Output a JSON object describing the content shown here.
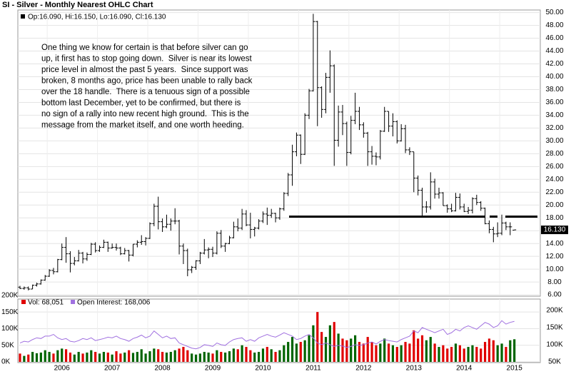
{
  "chart_data": [
    {
      "type": "ohlc",
      "title": "SI - Silver - Monthly Nearest OHLC Chart",
      "ohlc_label": "Op:16.090, Hi:16.150, Lo:16.090, Cl:16.130",
      "annotation": [
        "One thing we know for certain is that before silver can go",
        "up, it first has to stop going down.  Silver is near its lowest",
        "price level in almost the past 5 years.  Since support was",
        "broken, 8 months ago, price has been unable to rally back",
        "over the 18 handle.  There is a tenuous sign of a possible",
        "bottom last December, yet to be confirmed, but there is",
        "no sign of a rally into new recent high ground.  This is the",
        "message from the market itself, and one worth heeding."
      ],
      "color": "#000000",
      "open": [
        7.2,
        7.0,
        7.1,
        6.9,
        7.5,
        7.7,
        8.3,
        8.9,
        9.8,
        9.6,
        11.5,
        13.4,
        12.4,
        10.9,
        11.3,
        12.5,
        11.6,
        12.3,
        13.9,
        12.9,
        13.4,
        14.2,
        13.3,
        13.4,
        13.3,
        12.4,
        12.9,
        12.2,
        13.9,
        14.2,
        14.3,
        14.8,
        17.1,
        19.8,
        17.4,
        16.6,
        17.0,
        17.5,
        17.5,
        13.6,
        12.9,
        9.9,
        10.3,
        11.3,
        12.5,
        13.0,
        13.1,
        12.5,
        15.6,
        13.6,
        14.0,
        14.9,
        16.6,
        16.4,
        18.6,
        16.9,
        16.2,
        16.4,
        17.5,
        18.6,
        18.4,
        18.7,
        18.0,
        19.4,
        21.8,
        24.7,
        28.3,
        30.9,
        27.9,
        34.0,
        37.8,
        48.6,
        38.3,
        34.9,
        39.9,
        41.7,
        30.1,
        34.5,
        32.7,
        28.2,
        33.2,
        34.6,
        32.5,
        31.2,
        28.3,
        27.6,
        27.5,
        31.5,
        34.6,
        32.3,
        33.0,
        30.0,
        31.9,
        28.6,
        28.3,
        24.2,
        22.3,
        19.7,
        19.7,
        23.6,
        21.7,
        21.9,
        19.9,
        19.4,
        19.1,
        21.2,
        19.7,
        19.0,
        19.2,
        21.0,
        20.4,
        19.5,
        17.1,
        16.2,
        15.5,
        15.6,
        17.2,
        16.6,
        16.09
      ],
      "high": [
        7.4,
        7.3,
        7.3,
        7.6,
        7.9,
        8.4,
        9.1,
        10.0,
        10.2,
        11.6,
        14.0,
        15.0,
        12.8,
        11.9,
        13.0,
        12.7,
        12.6,
        14.1,
        14.2,
        13.7,
        14.6,
        14.3,
        14.0,
        14.0,
        13.5,
        13.3,
        13.0,
        13.9,
        14.5,
        15.3,
        15.0,
        17.3,
        20.2,
        21.3,
        17.9,
        18.5,
        17.9,
        19.5,
        17.7,
        14.0,
        13.2,
        10.5,
        11.4,
        12.7,
        14.7,
        13.4,
        13.5,
        15.9,
        16.1,
        14.1,
        15.2,
        17.4,
        17.9,
        19.4,
        19.2,
        18.8,
        16.6,
        17.8,
        19.0,
        19.6,
        19.4,
        18.8,
        19.6,
        22.0,
        25.0,
        29.4,
        31.3,
        31.0,
        34.3,
        38.1,
        49.8,
        48.7,
        38.5,
        40.6,
        44.1,
        41.9,
        35.5,
        35.6,
        33.0,
        33.9,
        37.5,
        35.3,
        32.9,
        31.4,
        29.2,
        28.2,
        31.7,
        35.3,
        34.6,
        34.3,
        33.2,
        32.6,
        32.5,
        29.0,
        28.3,
        24.6,
        22.7,
        20.6,
        25.1,
        24.1,
        22.7,
        22.0,
        20.1,
        20.2,
        21.9,
        21.8,
        20.2,
        19.7,
        21.2,
        21.6,
        20.6,
        19.6,
        17.6,
        16.6,
        17.3,
        18.5,
        17.4,
        17.3,
        16.15
      ],
      "low": [
        6.9,
        6.8,
        6.7,
        6.9,
        7.3,
        7.6,
        8.2,
        8.8,
        9.2,
        9.5,
        11.4,
        11.0,
        9.5,
        10.6,
        11.2,
        10.9,
        11.3,
        12.2,
        12.6,
        12.7,
        13.3,
        12.7,
        13.2,
        12.9,
        12.2,
        12.3,
        11.2,
        12.0,
        13.4,
        13.8,
        13.7,
        14.7,
        16.7,
        16.2,
        15.8,
        16.4,
        16.0,
        17.0,
        12.3,
        10.8,
        8.9,
        9.4,
        9.9,
        10.8,
        12.3,
        11.7,
        11.9,
        12.3,
        13.3,
        12.7,
        13.9,
        14.8,
        15.9,
        16.1,
        16.7,
        14.8,
        15.1,
        16.2,
        17.2,
        16.9,
        18.0,
        17.3,
        17.7,
        19.1,
        21.4,
        23.0,
        27.6,
        26.4,
        27.8,
        33.4,
        37.7,
        32.3,
        33.6,
        34.3,
        37.5,
        26.1,
        29.1,
        30.9,
        26.1,
        27.9,
        32.6,
        31.7,
        30.5,
        26.1,
        26.3,
        26.2,
        27.1,
        31.4,
        31.4,
        30.7,
        29.6,
        29.9,
        28.1,
        27.8,
        22.0,
        21.5,
        18.2,
        18.8,
        19.3,
        21.0,
        21.0,
        19.9,
        18.8,
        18.9,
        19.0,
        19.3,
        18.9,
        18.6,
        18.7,
        20.0,
        19.1,
        17.0,
        15.6,
        14.2,
        15.0,
        15.3,
        16.1,
        15.3,
        16.09
      ],
      "close": [
        7.0,
        7.1,
        6.9,
        7.5,
        7.7,
        8.3,
        8.9,
        9.8,
        9.6,
        11.5,
        13.4,
        12.4,
        10.9,
        11.3,
        12.5,
        11.6,
        12.3,
        13.9,
        12.9,
        13.4,
        14.2,
        13.3,
        13.4,
        13.3,
        12.4,
        12.9,
        12.2,
        13.9,
        14.2,
        14.3,
        14.8,
        17.1,
        19.8,
        17.4,
        16.6,
        17.0,
        17.5,
        17.5,
        13.6,
        12.9,
        9.9,
        10.3,
        11.3,
        12.5,
        13.0,
        13.1,
        12.5,
        15.6,
        13.6,
        14.0,
        14.9,
        16.6,
        16.4,
        18.6,
        16.9,
        16.2,
        16.4,
        17.5,
        18.6,
        18.4,
        18.7,
        18.0,
        19.4,
        21.8,
        24.7,
        28.3,
        30.9,
        27.9,
        34.0,
        37.8,
        48.6,
        38.3,
        34.9,
        39.9,
        41.7,
        30.1,
        34.5,
        32.7,
        28.2,
        33.2,
        34.6,
        32.5,
        31.2,
        28.3,
        27.6,
        27.5,
        31.5,
        34.6,
        32.3,
        33.0,
        30.0,
        31.9,
        28.6,
        28.3,
        24.2,
        22.3,
        19.7,
        19.7,
        23.6,
        21.7,
        21.9,
        19.9,
        19.4,
        19.1,
        21.2,
        19.7,
        19.0,
        19.2,
        21.0,
        20.4,
        19.5,
        17.1,
        16.2,
        15.5,
        15.6,
        17.2,
        16.6,
        16.6,
        16.13
      ],
      "last_close_label": "16.130",
      "support_level": 18.2,
      "ylim": [
        5.9,
        50.4
      ],
      "yticks": [
        {
          "value": 6,
          "label": "6.00"
        },
        {
          "value": 8,
          "label": "8.00"
        },
        {
          "value": 10,
          "label": "10.00"
        },
        {
          "value": 12,
          "label": "12.00"
        },
        {
          "value": 14,
          "label": "14.00"
        },
        {
          "value": 16,
          "label": "16.00"
        },
        {
          "value": 18,
          "label": "18.00"
        },
        {
          "value": 20,
          "label": "20.00"
        },
        {
          "value": 22,
          "label": "22.00"
        },
        {
          "value": 24,
          "label": "24.00"
        },
        {
          "value": 26,
          "label": "26.00"
        },
        {
          "value": 28,
          "label": "28.00"
        },
        {
          "value": 30,
          "label": "30.00"
        },
        {
          "value": 32,
          "label": "32.00"
        },
        {
          "value": 34,
          "label": "34.00"
        },
        {
          "value": 36,
          "label": "36.00"
        },
        {
          "value": 38,
          "label": "38.00"
        },
        {
          "value": 40,
          "label": "40.00"
        },
        {
          "value": 42,
          "label": "42.00"
        },
        {
          "value": 44,
          "label": "44.00"
        },
        {
          "value": 46,
          "label": "46.00"
        },
        {
          "value": 48,
          "label": "48.00"
        },
        {
          "value": 50,
          "label": "50.00"
        }
      ],
      "grid": true
    },
    {
      "type": "bar",
      "categories": [
        null,
        null,
        null,
        null,
        null,
        null,
        null,
        "2006",
        null,
        null,
        null,
        null,
        null,
        null,
        null,
        null,
        null,
        null,
        null,
        "2007",
        null,
        null,
        null,
        null,
        null,
        null,
        null,
        null,
        null,
        null,
        null,
        "2008",
        null,
        null,
        null,
        null,
        null,
        null,
        null,
        null,
        null,
        null,
        null,
        "2009",
        null,
        null,
        null,
        null,
        null,
        null,
        null,
        null,
        null,
        null,
        null,
        "2010",
        null,
        null,
        null,
        null,
        null,
        null,
        null,
        null,
        null,
        null,
        null,
        "2011",
        null,
        null,
        null,
        null,
        null,
        null,
        null,
        null,
        null,
        null,
        null,
        "2012",
        null,
        null,
        null,
        null,
        null,
        null,
        null,
        null,
        null,
        null,
        null,
        "2013",
        null,
        null,
        null,
        null,
        null,
        null,
        null,
        null,
        null,
        null,
        null,
        "2014",
        null,
        null,
        null,
        null,
        null,
        null,
        null,
        null,
        null,
        null,
        null,
        "2015",
        null,
        null,
        null
      ],
      "series": [
        {
          "name": "Vol: 68,051",
          "color": "#e00000",
          "up_color": "#006400",
          "values": [
            25000,
            18000,
            22000,
            30000,
            26000,
            28000,
            35000,
            30000,
            25000,
            35000,
            40000,
            38000,
            28000,
            22000,
            30000,
            25000,
            28000,
            35000,
            30000,
            25000,
            30000,
            28000,
            22000,
            32000,
            25000,
            28000,
            35000,
            27000,
            30000,
            38000,
            25000,
            32000,
            40000,
            38000,
            30000,
            28000,
            30000,
            35000,
            40000,
            45000,
            35000,
            25000,
            22000,
            25000,
            30000,
            28000,
            25000,
            35000,
            30000,
            28000,
            32000,
            40000,
            38000,
            50000,
            45000,
            35000,
            28000,
            30000,
            40000,
            45000,
            38000,
            30000,
            35000,
            50000,
            60000,
            75000,
            55000,
            60000,
            65000,
            80000,
            110000,
            150000,
            90000,
            75000,
            110000,
            120000,
            85000,
            70000,
            65000,
            70000,
            80000,
            60000,
            55000,
            75000,
            60000,
            50000,
            55000,
            70000,
            55000,
            50000,
            45000,
            50000,
            60000,
            55000,
            95000,
            70000,
            80000,
            65000,
            75000,
            55000,
            45000,
            50000,
            40000,
            45000,
            55000,
            50000,
            40000,
            45000,
            50000,
            45000,
            40000,
            60000,
            70000,
            65000,
            50000,
            55000,
            45000,
            65000,
            68051
          ]
        },
        {
          "name": "Open Interest: 168,006",
          "color": "#a070e0",
          "type": "line",
          "axis": "y2",
          "values": [
            105000,
            110000,
            108000,
            115000,
            120000,
            118000,
            125000,
            125000,
            130000,
            120000,
            115000,
            118000,
            110000,
            108000,
            112000,
            118000,
            115000,
            120000,
            112000,
            115000,
            118000,
            122000,
            120000,
            125000,
            118000,
            115000,
            110000,
            118000,
            122000,
            128000,
            120000,
            125000,
            140000,
            130000,
            120000,
            125000,
            118000,
            120000,
            105000,
            100000,
            95000,
            90000,
            88000,
            92000,
            100000,
            98000,
            95000,
            105000,
            100000,
            98000,
            108000,
            115000,
            118000,
            120000,
            110000,
            115000,
            110000,
            120000,
            125000,
            130000,
            125000,
            122000,
            128000,
            135000,
            130000,
            125000,
            115000,
            118000,
            125000,
            130000,
            120000,
            105000,
            100000,
            105000,
            100000,
            95000,
            98000,
            96000,
            92000,
            95000,
            100000,
            98000,
            100000,
            105000,
            108000,
            102000,
            110000,
            115000,
            112000,
            110000,
            108000,
            115000,
            120000,
            125000,
            140000,
            135000,
            150000,
            145000,
            140000,
            135000,
            140000,
            145000,
            130000,
            135000,
            145000,
            140000,
            150000,
            155000,
            150000,
            145000,
            155000,
            165000,
            160000,
            150000,
            155000,
            170000,
            160000,
            165000,
            168006
          ]
        }
      ],
      "ylim": [
        0,
        189000
      ],
      "yticks": [
        {
          "value": 0,
          "label": "0K"
        },
        {
          "value": 50000,
          "label": "50K"
        },
        {
          "value": 100000,
          "label": "100K"
        },
        {
          "value": 150000,
          "label": "150K"
        },
        {
          "value": 200000,
          "label": "200K"
        }
      ],
      "y2lim": [
        50000,
        233000
      ],
      "y2ticks": [
        {
          "value": 50000,
          "label": "50K"
        },
        {
          "value": 100000,
          "label": "100K"
        },
        {
          "value": 150000,
          "label": "150K"
        },
        {
          "value": 200000,
          "label": "200K"
        }
      ],
      "grid": true
    }
  ]
}
